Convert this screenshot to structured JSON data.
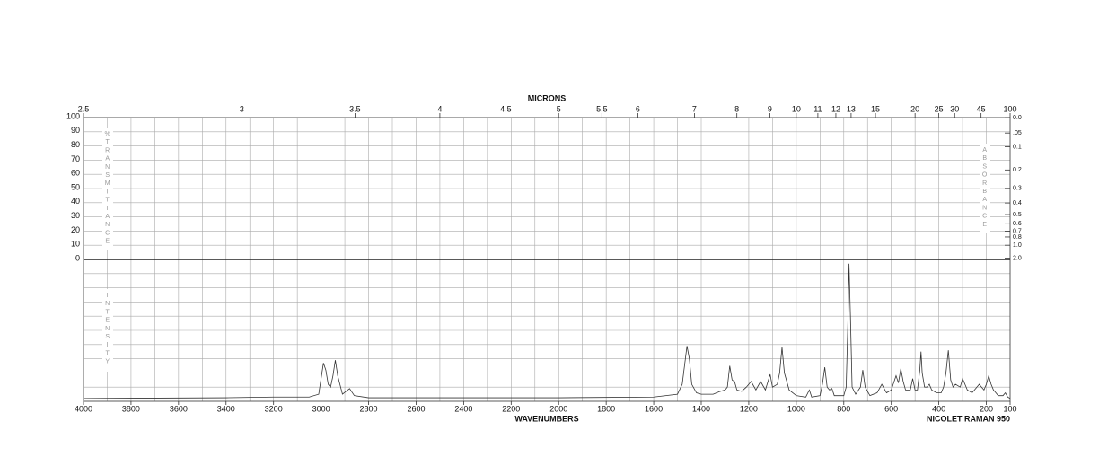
{
  "chart_data": {
    "type": "line",
    "x2label": "MICRONS",
    "xlabel": "WAVENUMBERS",
    "footer": "NICOLET RAMAN 950",
    "ylabel": "%TRANSMITTANCE",
    "y2label": "ABSORBANCE",
    "ilabel": "INTENSITY",
    "xlim": [
      4000,
      100
    ],
    "xticks": [
      4000,
      3800,
      3600,
      3400,
      3200,
      3000,
      2800,
      2600,
      2400,
      2200,
      2000,
      1800,
      1600,
      1400,
      1200,
      1000,
      800,
      600,
      400,
      200,
      100
    ],
    "xgrid": [
      3900,
      3800,
      3700,
      3600,
      3500,
      3400,
      3300,
      3200,
      3100,
      3000,
      2900,
      2800,
      2700,
      2600,
      2500,
      2400,
      2300,
      2200,
      2100,
      2000,
      1900,
      1800,
      1700,
      1600,
      1500,
      1400,
      1300,
      1200,
      1100,
      1000,
      900,
      800,
      700,
      600,
      500,
      400,
      300,
      200
    ],
    "x2ticks": [
      2.5,
      3,
      3.5,
      4,
      4.5,
      5,
      5.5,
      6,
      7,
      8,
      9,
      10,
      11,
      12,
      13,
      15,
      20,
      25,
      30,
      45,
      100
    ],
    "ylim": [
      0,
      100
    ],
    "yticks": [
      100,
      90,
      80,
      70,
      60,
      50,
      40,
      30,
      20,
      10,
      0
    ],
    "y2scale": "absorbance",
    "y2ticks": [
      {
        "value": 0,
        "label": "0.0"
      },
      {
        "value": 0.05,
        "label": ".05"
      },
      0.1,
      0.2,
      0.3,
      0.4,
      0.5,
      0.6,
      0.7,
      0.8,
      {
        "value": 1,
        "label": "1.0"
      },
      {
        "value": 2,
        "label": "2.0"
      }
    ],
    "ilim": [
      0,
      100
    ],
    "grid": true,
    "x": [
      4000,
      3400,
      3200,
      3050,
      3010,
      2990,
      2980,
      2970,
      2960,
      2950,
      2940,
      2930,
      2910,
      2880,
      2860,
      2800,
      2000,
      1600,
      1500,
      1480,
      1460,
      1450,
      1440,
      1420,
      1400,
      1380,
      1350,
      1320,
      1300,
      1290,
      1280,
      1270,
      1260,
      1250,
      1230,
      1210,
      1190,
      1170,
      1150,
      1130,
      1110,
      1100,
      1080,
      1070,
      1060,
      1050,
      1030,
      1000,
      960,
      945,
      935,
      900,
      890,
      880,
      870,
      860,
      850,
      840,
      800,
      790,
      782,
      778,
      772,
      765,
      750,
      730,
      720,
      710,
      690,
      660,
      640,
      620,
      600,
      580,
      570,
      560,
      550,
      540,
      520,
      510,
      500,
      490,
      480,
      475,
      470,
      460,
      450,
      440,
      430,
      410,
      390,
      380,
      370,
      360,
      350,
      340,
      330,
      310,
      300,
      280,
      260,
      240,
      230,
      220,
      210,
      200,
      190,
      180,
      170,
      160,
      150,
      130,
      120,
      110,
      100
    ],
    "series": [
      {
        "color": "#333333",
        "values": [
          2,
          2.5,
          3,
          3,
          5,
          27,
          22,
          12,
          10,
          18,
          29,
          18,
          5,
          9,
          4,
          2.5,
          2.5,
          3,
          5,
          12,
          39,
          30,
          12,
          6,
          5,
          5,
          5,
          7,
          8,
          10,
          25,
          15,
          14,
          8,
          7,
          10,
          14,
          8,
          14,
          8,
          19,
          10,
          12,
          20,
          38,
          20,
          8,
          4,
          3,
          8,
          3,
          4,
          12,
          24,
          10,
          8,
          9,
          4,
          4,
          10,
          60,
          97,
          60,
          10,
          5,
          10,
          22,
          10,
          4,
          6,
          12,
          6,
          8,
          18,
          13,
          23,
          14,
          8,
          8,
          16,
          8,
          8,
          22,
          35,
          20,
          10,
          10,
          12,
          8,
          6,
          6,
          10,
          20,
          36,
          15,
          10,
          12,
          10,
          16,
          8,
          6,
          10,
          12,
          10,
          8,
          12,
          18,
          12,
          8,
          6,
          4,
          4,
          6,
          3,
          2
        ]
      }
    ]
  }
}
